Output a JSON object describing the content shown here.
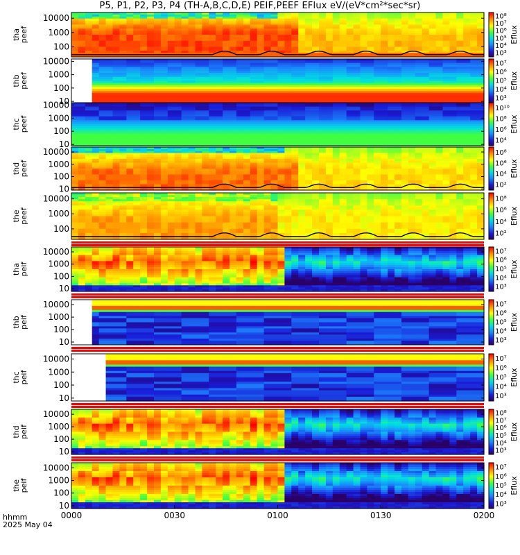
{
  "title": "P5, P1, P2, P3, P4 (TH-A,B,C,D,E) PEIF,PEEF EFlux eV/(eV*cm²*sec*sr)",
  "time_label_line1": "hhmm",
  "time_label_line2": "2025 May 04",
  "colorbar_label": "Eflux",
  "x_ticks": [
    "0000",
    "0030",
    "0100",
    "0130",
    "0200"
  ],
  "chart_data": [
    {
      "type": "heatmap",
      "panel": "tha peef",
      "ylabel_lines": [
        "tha",
        "peef"
      ],
      "y_ticks": [
        "100",
        "1000",
        "10000"
      ],
      "ylim": [
        20,
        25000
      ],
      "xlim": [
        "00:00",
        "02:00"
      ],
      "colorbar_ticks": [
        "10³",
        "10⁴",
        "10⁵",
        "10⁶",
        "10⁷",
        "10⁸"
      ],
      "overlay_line": true
    },
    {
      "type": "heatmap",
      "panel": "thb peef",
      "ylabel_lines": [
        "thb",
        "peef"
      ],
      "y_ticks": [
        "10",
        "100",
        "1000",
        "10000"
      ],
      "ylim": [
        8,
        15000
      ],
      "xlim": [
        "00:00",
        "02:00"
      ],
      "colorbar_ticks": [
        "10³",
        "10⁴",
        "10⁵",
        "10⁶",
        "10⁷"
      ],
      "data_start": "00:06",
      "overlay_line": false
    },
    {
      "type": "heatmap",
      "panel": "thc peef",
      "ylabel_lines": [
        "thc",
        "peef"
      ],
      "y_ticks": [
        "10",
        "100",
        "1000",
        "10000"
      ],
      "ylim": [
        8,
        15000
      ],
      "xlim": [
        "00:00",
        "02:00"
      ],
      "colorbar_ticks": [
        "10⁴",
        "10⁶",
        "10⁸",
        "10¹⁰"
      ],
      "overlay_line": false
    },
    {
      "type": "heatmap",
      "panel": "thd peef",
      "ylabel_lines": [
        "thd",
        "peef"
      ],
      "y_ticks": [
        "10",
        "100",
        "1000",
        "10000"
      ],
      "ylim": [
        8,
        25000
      ],
      "xlim": [
        "00:00",
        "02:00"
      ],
      "colorbar_ticks": [
        "10²",
        "10⁴",
        "10⁶",
        "10⁸"
      ],
      "overlay_line": true
    },
    {
      "type": "heatmap",
      "panel": "the peef",
      "ylabel_lines": [
        "the",
        "peef"
      ],
      "y_ticks": [
        "100",
        "1000",
        "10000"
      ],
      "ylim": [
        20,
        25000
      ],
      "xlim": [
        "00:00",
        "02:00"
      ],
      "colorbar_ticks": [
        "10²",
        "10⁴",
        "10⁶",
        "10⁸"
      ],
      "overlay_line": true
    },
    {
      "type": "heatmap",
      "panel": "tha peif",
      "ylabel_lines": [
        "tha",
        "peif"
      ],
      "y_ticks": [
        "10",
        "100",
        "1000",
        "10000"
      ],
      "ylim": [
        6,
        25000
      ],
      "xlim": [
        "00:00",
        "02:00"
      ],
      "colorbar_ticks": [
        "10³",
        "10⁴",
        "10⁵",
        "10⁶",
        "10⁷"
      ],
      "overlay_line": false
    },
    {
      "type": "heatmap",
      "panel": "thb peif",
      "ylabel_lines": [
        "thb",
        "peif"
      ],
      "y_ticks": [
        "10",
        "100",
        "1000",
        "10000"
      ],
      "ylim": [
        6,
        25000
      ],
      "xlim": [
        "00:00",
        "02:00"
      ],
      "colorbar_ticks": [
        "10³",
        "10⁴",
        "10⁵",
        "10⁶",
        "10⁷"
      ],
      "data_start": "00:06",
      "overlay_line": false
    },
    {
      "type": "heatmap",
      "panel": "thc peif",
      "ylabel_lines": [
        "thc",
        "peif"
      ],
      "y_ticks": [
        "10",
        "100",
        "1000",
        "10000"
      ],
      "ylim": [
        6,
        25000
      ],
      "xlim": [
        "00:00",
        "02:00"
      ],
      "colorbar_ticks": [
        "10³",
        "10⁴",
        "10⁵",
        "10⁶",
        "10⁷"
      ],
      "data_start": "00:10",
      "overlay_line": false
    },
    {
      "type": "heatmap",
      "panel": "thd peif",
      "ylabel_lines": [
        "thd",
        "peif"
      ],
      "y_ticks": [
        "10",
        "100",
        "1000",
        "10000"
      ],
      "ylim": [
        6,
        25000
      ],
      "xlim": [
        "00:00",
        "02:00"
      ],
      "colorbar_ticks": [
        "10³",
        "10⁴",
        "10⁵",
        "10⁶",
        "10⁷",
        "10⁸"
      ],
      "overlay_line": false
    },
    {
      "type": "heatmap",
      "panel": "the peif",
      "ylabel_lines": [
        "the",
        "peif"
      ],
      "y_ticks": [
        "10",
        "100",
        "1000",
        "10000"
      ],
      "ylim": [
        6,
        25000
      ],
      "xlim": [
        "00:00",
        "02:00"
      ],
      "colorbar_ticks": [
        "10³",
        "10⁴",
        "10⁵",
        "10⁶",
        "10⁷"
      ],
      "overlay_line": false
    }
  ]
}
